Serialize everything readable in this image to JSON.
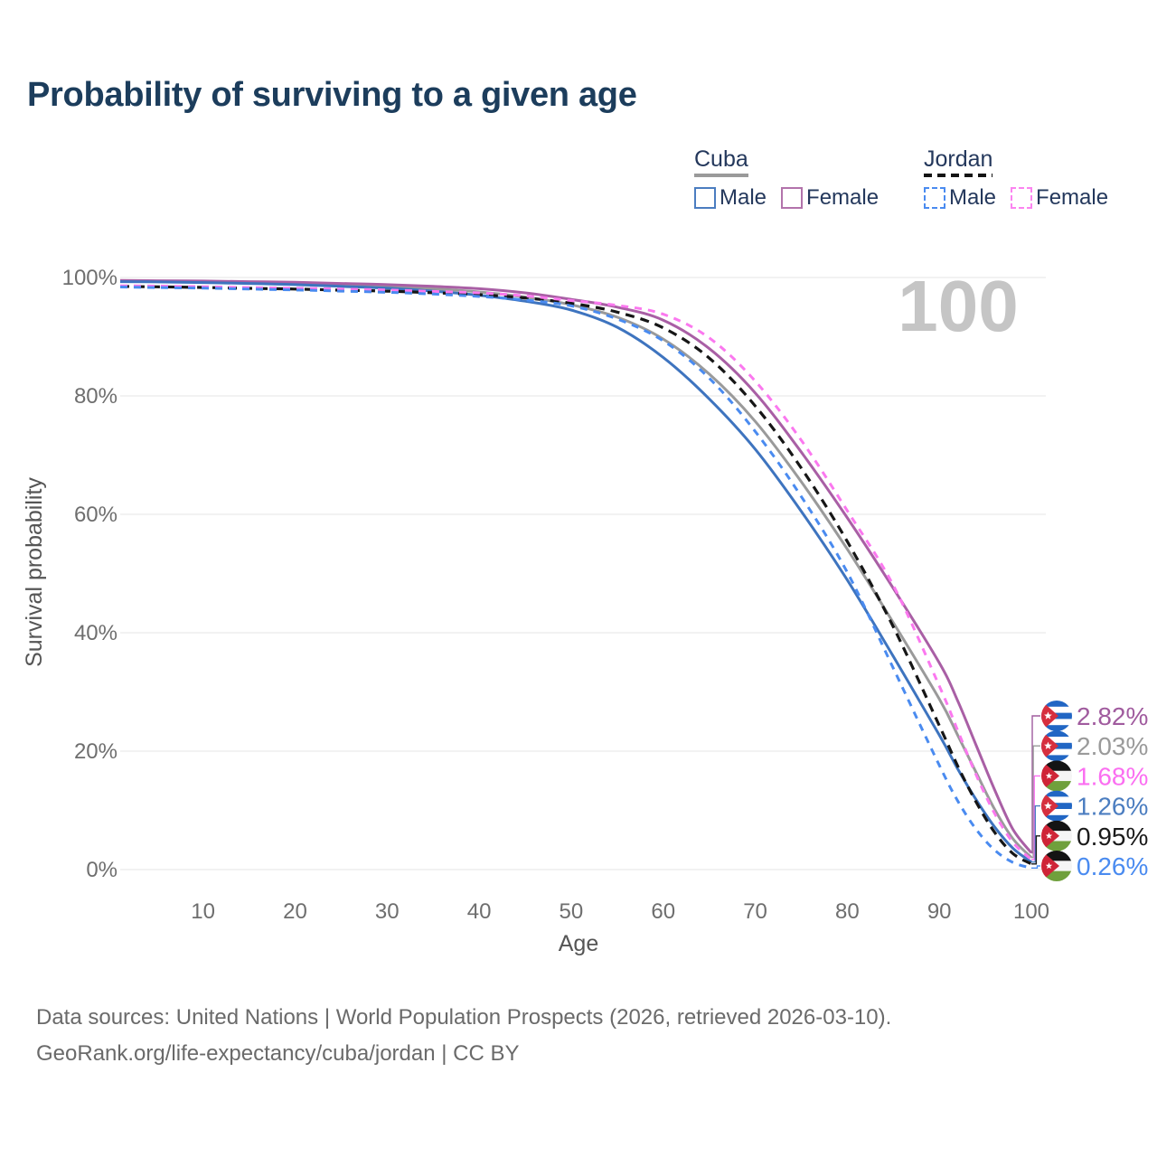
{
  "page": {
    "title": "Probability of surviving to a given age",
    "background": "#ffffff"
  },
  "legend": {
    "groups": [
      {
        "label": "Cuba",
        "line_style": "solid",
        "underline_color": "#9a9a9a",
        "items": [
          {
            "label": "Male",
            "color": "#4b7dc0",
            "dashed": false
          },
          {
            "label": "Female",
            "color": "#b273ab",
            "dashed": false
          }
        ]
      },
      {
        "label": "Jordan",
        "line_style": "dashed",
        "underline_color": "#141414",
        "items": [
          {
            "label": "Male",
            "color": "#4a8bf0",
            "dashed": true
          },
          {
            "label": "Female",
            "color": "#fb84f0",
            "dashed": true
          }
        ]
      }
    ]
  },
  "chart_data": {
    "type": "line",
    "title": "Probability of surviving to a given age",
    "xlabel": "Age",
    "ylabel": "Survival probability",
    "xlim": [
      1,
      100
    ],
    "ylim": [
      0,
      100
    ],
    "grid": "horizontal",
    "legend_position": "top-right",
    "watermark": "100",
    "x_ticks": [
      10,
      20,
      30,
      40,
      50,
      60,
      70,
      80,
      90,
      100
    ],
    "y_ticks": [
      {
        "value": 0,
        "label": "0%"
      },
      {
        "value": 20,
        "label": "20%"
      },
      {
        "value": 40,
        "label": "40%"
      },
      {
        "value": 60,
        "label": "60%"
      },
      {
        "value": 80,
        "label": "80%"
      },
      {
        "value": 100,
        "label": "100%"
      }
    ],
    "ages": [
      1,
      5,
      10,
      15,
      20,
      25,
      30,
      35,
      40,
      45,
      50,
      55,
      60,
      65,
      70,
      75,
      80,
      85,
      90,
      92,
      94,
      96,
      98,
      100
    ],
    "series": [
      {
        "id": "cuba_avg",
        "name": "Cuba",
        "country": "Cuba",
        "sex": "both",
        "color": "#9a9a9a",
        "dashed": false,
        "values": [
          99.4,
          99.35,
          99.28,
          99.15,
          99.0,
          98.75,
          98.5,
          98.1,
          97.55,
          96.7,
          95.4,
          93.3,
          89.6,
          83.7,
          75.7,
          65.5,
          54.1,
          41.7,
          28.8,
          22.7,
          16.4,
          10.2,
          5.2,
          2.03
        ],
        "end_label": "2.03%"
      },
      {
        "id": "cuba_female",
        "name": "Cuba Female",
        "country": "Cuba",
        "sex": "female",
        "color": "#a95fa5",
        "dashed": false,
        "values": [
          99.5,
          99.45,
          99.4,
          99.3,
          99.2,
          99.0,
          98.8,
          98.5,
          98.1,
          97.4,
          96.3,
          95.0,
          92.8,
          88.0,
          80.5,
          70.5,
          59.4,
          47.5,
          34.9,
          28.5,
          21.0,
          13.5,
          6.8,
          2.82
        ],
        "end_label": "2.82%"
      },
      {
        "id": "cuba_male",
        "name": "Cuba Male",
        "country": "Cuba",
        "sex": "male",
        "color": "#3e74bf",
        "dashed": false,
        "values": [
          99.3,
          99.25,
          99.15,
          99.0,
          98.8,
          98.5,
          98.2,
          97.7,
          97.0,
          96.0,
          94.5,
          91.6,
          86.5,
          79.5,
          71.0,
          60.5,
          48.9,
          36.0,
          22.7,
          17.0,
          11.8,
          7.2,
          3.6,
          1.26
        ],
        "end_label": "1.26%"
      },
      {
        "id": "jordan_avg",
        "name": "Jordan",
        "country": "Jordan",
        "sex": "both",
        "color": "#161616",
        "dashed": true,
        "values": [
          98.5,
          98.42,
          98.32,
          98.17,
          98.05,
          97.87,
          97.7,
          97.42,
          97.1,
          96.55,
          95.65,
          94.15,
          91.5,
          86.4,
          78.3,
          67.8,
          55.4,
          41.0,
          24.3,
          17.5,
          11.4,
          6.3,
          2.7,
          0.95
        ],
        "end_label": "0.95%"
      },
      {
        "id": "jordan_female",
        "name": "Jordan Female",
        "country": "Jordan",
        "sex": "female",
        "color": "#fb78ef",
        "dashed": true,
        "values": [
          98.6,
          98.55,
          98.45,
          98.3,
          98.2,
          98.05,
          97.9,
          97.65,
          97.4,
          96.9,
          96.1,
          95.3,
          93.8,
          89.8,
          82.5,
          72.5,
          60.6,
          48.0,
          31.0,
          23.5,
          16.0,
          9.5,
          4.6,
          1.68
        ],
        "end_label": "1.68%"
      },
      {
        "id": "jordan_male",
        "name": "Jordan Male",
        "country": "Jordan",
        "sex": "male",
        "color": "#4a8bf0",
        "dashed": true,
        "values": [
          98.4,
          98.3,
          98.2,
          98.05,
          97.9,
          97.7,
          97.5,
          97.2,
          96.8,
          96.2,
          95.2,
          93.0,
          89.3,
          83.0,
          74.0,
          63.0,
          50.2,
          34.0,
          17.6,
          11.6,
          6.8,
          3.3,
          1.2,
          0.26
        ],
        "end_label": "0.26%"
      }
    ],
    "end_labels": [
      {
        "series": "cuba_female",
        "text": "2.82%",
        "flag": "cuba",
        "color": "#a05b9e"
      },
      {
        "series": "cuba_avg",
        "text": "2.03%",
        "flag": "cuba",
        "color": "#9a9a9a"
      },
      {
        "series": "jordan_female",
        "text": "1.68%",
        "flag": "jordan",
        "color": "#fb6ef1"
      },
      {
        "series": "cuba_male",
        "text": "1.26%",
        "flag": "cuba",
        "color": "#4b7dc0"
      },
      {
        "series": "jordan_avg",
        "text": "0.95%",
        "flag": "jordan",
        "color": "#1a1a1a"
      },
      {
        "series": "jordan_male",
        "text": "0.26%",
        "flag": "jordan",
        "color": "#4a8bf0"
      }
    ],
    "flag_colors": {
      "cuba": {
        "blue": "#2166c4",
        "white": "#ffffff",
        "red": "#d62f3e"
      },
      "jordan": {
        "black": "#141414",
        "white": "#f5f5f5",
        "green": "#6fa03c",
        "red": "#cf2437"
      }
    }
  },
  "footer": {
    "line1": "Data sources: United Nations | World Population Prospects (2026, retrieved 2026-03-10).",
    "line2": "GeoRank.org/life-expectancy/cuba/jordan | CC BY"
  }
}
